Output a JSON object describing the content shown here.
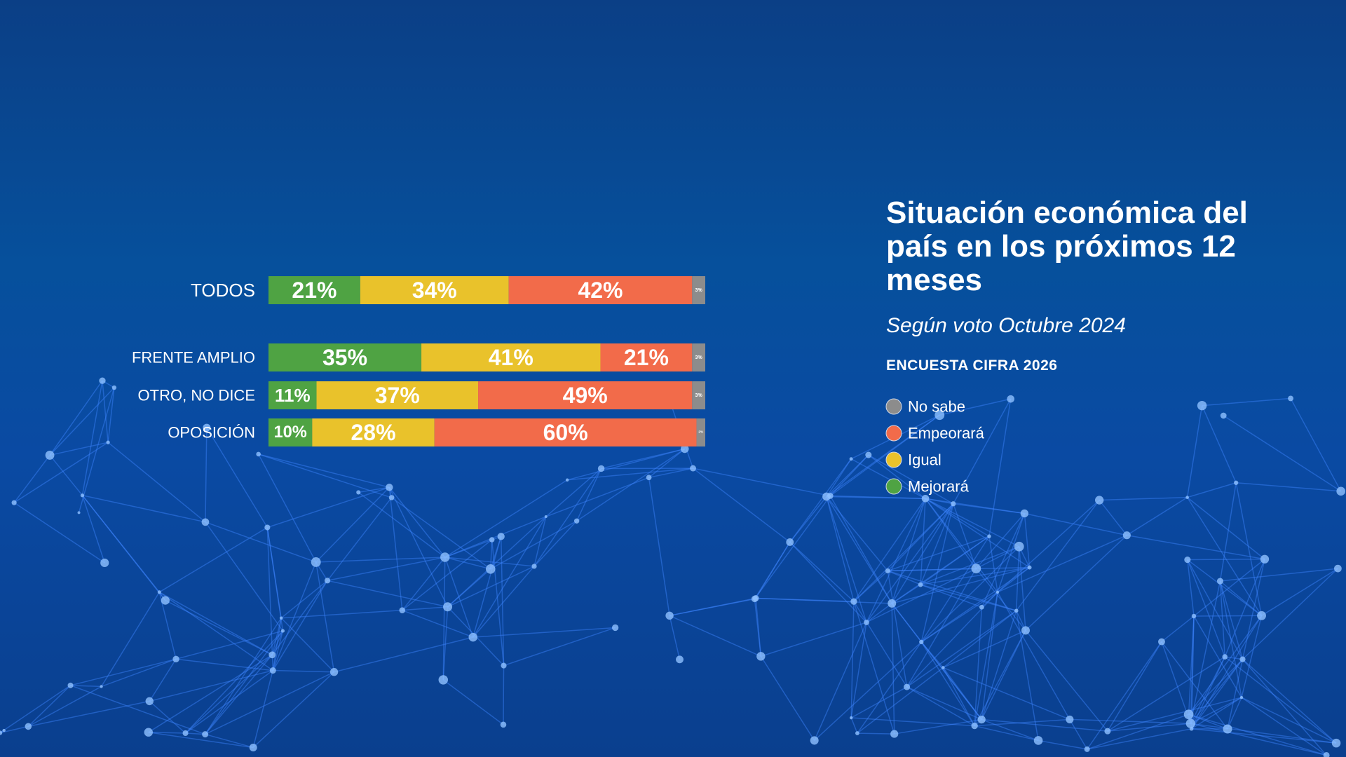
{
  "chart_data": {
    "type": "stacked-bar-horizontal",
    "title": "Situación económica del país en los próximos 12 meses",
    "subtitle": "Según voto Octubre 2024",
    "source": "ENCUESTA CIFRA 2026",
    "categories": [
      "TODOS",
      "FRENTE AMPLIO",
      "OTRO, NO DICE",
      "OPOSICIÓN"
    ],
    "series": [
      {
        "name": "Mejorará",
        "color": "#4fa343",
        "values": [
          21,
          35,
          11,
          10
        ],
        "value_labels": [
          "21%",
          "35%",
          "11%",
          "10%"
        ]
      },
      {
        "name": "Igual",
        "color": "#e9c22b",
        "values": [
          34,
          41,
          37,
          28
        ],
        "value_labels": [
          "34%",
          "41%",
          "37%",
          "28%"
        ]
      },
      {
        "name": "Empeorará",
        "color": "#f26b4a",
        "values": [
          42,
          21,
          49,
          60
        ],
        "value_labels": [
          "42%",
          "21%",
          "49%",
          "60%"
        ]
      },
      {
        "name": "No sabe",
        "color": "#8c8c8c",
        "values": [
          3,
          3,
          3,
          2
        ],
        "value_labels": [
          "3%",
          "3%",
          "3%",
          "2%"
        ]
      }
    ]
  }
}
